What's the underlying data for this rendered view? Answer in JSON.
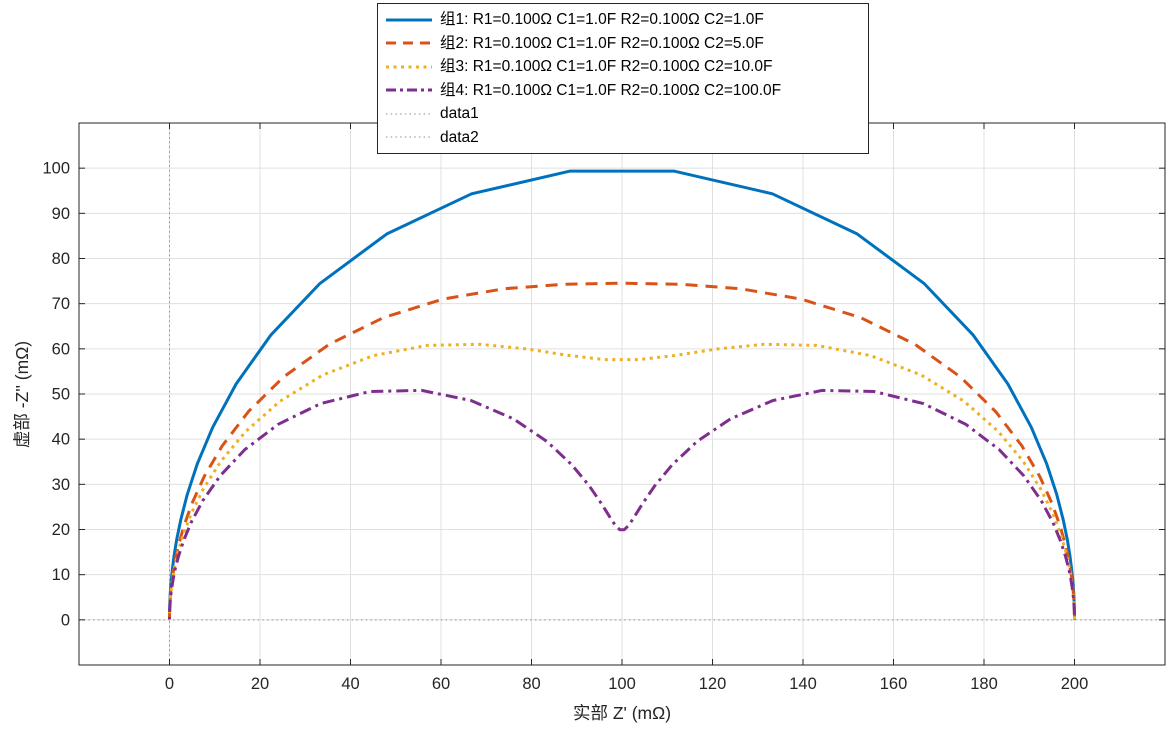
{
  "chart_data": {
    "type": "line",
    "subtype": "nyquist-impedance-plot",
    "title": "",
    "xlabel": "实部 Z' (mΩ)",
    "ylabel": "虚部 -Z'' (mΩ)",
    "unit": "mΩ",
    "xlim": [
      -20,
      220
    ],
    "ylim": [
      -10,
      110
    ],
    "x_ticks": [
      0,
      20,
      40,
      60,
      80,
      100,
      120,
      140,
      160,
      180,
      200
    ],
    "y_ticks": [
      0,
      10,
      20,
      30,
      40,
      50,
      60,
      70,
      80,
      90,
      100
    ],
    "grid": true,
    "grid_color": "#e0e0e0",
    "axis_color": "#262626",
    "background_color": "#ffffff",
    "legend_position": "top-center",
    "omega_grid": {
      "log10_min": -2.95,
      "log10_max": 3.95,
      "log10_step": 0.1
    },
    "series": [
      {
        "name": "组1: R1=0.100Ω C1=1.0F R2=0.100Ω C2=1.0F",
        "color": "#0072BD",
        "linestyle": "solid",
        "linewidth": 3,
        "params": {
          "R1_ohm": 0.1,
          "C1_F": 1.0,
          "R2_ohm": 0.1,
          "C2_F": 1.0
        },
        "key_points": {
          "left_intercept": [
            0,
            0
          ],
          "peak": [
            100,
            99.3
          ],
          "right_intercept": [
            200,
            0
          ]
        }
      },
      {
        "name": "组2: R1=0.100Ω C1=1.0F R2=0.100Ω C2=5.0F",
        "color": "#D95319",
        "linestyle": "dashed",
        "linewidth": 3,
        "params": {
          "R1_ohm": 0.1,
          "C1_F": 1.0,
          "R2_ohm": 0.1,
          "C2_F": 5.0
        },
        "key_points": {
          "left_intercept": [
            0,
            0
          ],
          "peak": [
            100,
            74.5
          ],
          "right_intercept": [
            200,
            0
          ]
        }
      },
      {
        "name": "组3: R1=0.100Ω C1=1.0F R2=0.100Ω C2=10.0F",
        "color": "#EDB120",
        "linestyle": "dotted",
        "linewidth": 3,
        "params": {
          "R1_ohm": 0.1,
          "C1_F": 1.0,
          "R2_ohm": 0.1,
          "C2_F": 10.0
        },
        "key_points": {
          "left_intercept": [
            0,
            0
          ],
          "left_hump": [
            57,
            61
          ],
          "local_min": [
            100,
            57.5
          ],
          "right_hump": [
            140,
            61
          ],
          "right_intercept": [
            200,
            0
          ]
        }
      },
      {
        "name": "组4: R1=0.100Ω C1=1.0F R2=0.100Ω C2=100.0F",
        "color": "#7E2F8E",
        "linestyle": "dashdot",
        "linewidth": 3,
        "params": {
          "R1_ohm": 0.1,
          "C1_F": 1.0,
          "R2_ohm": 0.1,
          "C2_F": 100.0
        },
        "key_points": {
          "left_intercept": [
            0,
            0
          ],
          "left_hump": [
            50,
            50.8
          ],
          "local_min": [
            100,
            19.9
          ],
          "right_hump": [
            150,
            50.8
          ],
          "right_intercept": [
            200,
            0
          ]
        }
      }
    ],
    "reference_lines": [
      {
        "name": "data1",
        "orientation": "vertical",
        "value": 0,
        "linestyle": "dotted",
        "color": "#8f8f8f",
        "linewidth": 1
      },
      {
        "name": "data2",
        "orientation": "horizontal",
        "value": 0,
        "linestyle": "dotted",
        "color": "#8f8f8f",
        "linewidth": 1
      }
    ]
  }
}
